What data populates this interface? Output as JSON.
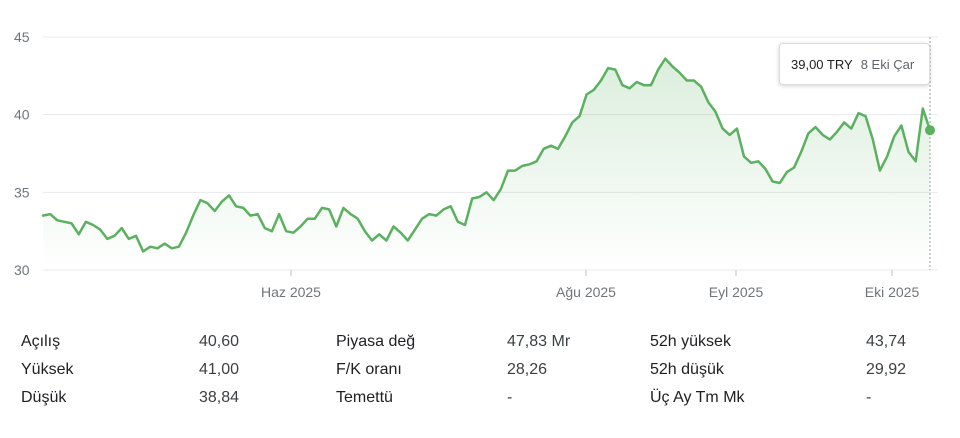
{
  "chart_data": {
    "type": "area",
    "title": "",
    "xlabel": "",
    "ylabel": "",
    "ylim": [
      30,
      45
    ],
    "yticks": [
      30,
      35,
      40,
      45
    ],
    "x_tick_labels": [
      "Haz 2025",
      "Ağu 2025",
      "Eyl 2025",
      "Eki 2025"
    ],
    "series": [
      {
        "values": [
          33.5,
          33.6,
          33.2,
          33.1,
          33.0,
          32.3,
          33.1,
          32.9,
          32.6,
          32.0,
          32.2,
          32.7,
          32.0,
          32.2,
          31.2,
          31.5,
          31.4,
          31.7,
          31.4,
          31.5,
          32.4,
          33.5,
          34.5,
          34.3,
          33.8,
          34.4,
          34.8,
          34.1,
          34.0,
          33.5,
          33.6,
          32.7,
          32.5,
          33.6,
          32.5,
          32.4,
          32.8,
          33.3,
          33.3,
          34.0,
          33.9,
          32.8,
          34.0,
          33.6,
          33.3,
          32.5,
          31.9,
          32.3,
          31.9,
          32.8,
          32.4,
          31.9,
          32.6,
          33.3,
          33.6,
          33.5,
          33.9,
          34.1,
          33.1,
          32.9,
          34.6,
          34.7,
          35.0,
          34.5,
          35.2,
          36.4,
          36.4,
          36.7,
          36.8,
          37.0,
          37.8,
          38.0,
          37.8,
          38.6,
          39.5,
          39.9,
          41.3,
          41.6,
          42.2,
          43.0,
          42.9,
          41.9,
          41.7,
          42.1,
          41.9,
          41.9,
          42.9,
          43.6,
          43.1,
          42.7,
          42.2,
          42.2,
          41.8,
          40.8,
          40.2,
          39.1,
          38.7,
          39.1,
          37.3,
          36.9,
          37.0,
          36.5,
          35.7,
          35.6,
          36.3,
          36.6,
          37.6,
          38.8,
          39.2,
          38.7,
          38.4,
          38.9,
          39.5,
          39.1,
          40.1,
          39.9,
          38.4,
          36.4,
          37.3,
          38.6,
          39.3,
          37.6,
          37.0,
          40.4,
          39.0
        ]
      }
    ],
    "last_point": {
      "price": "39,00 TRY",
      "date": "8 Eki Çar"
    },
    "colors": {
      "line": "#5bb160",
      "fill": "#5bb160",
      "grid": "#e8eaed",
      "tick": "#70757a"
    }
  },
  "tooltip": {
    "price": "39,00 TRY",
    "date": "8 Eki Çar"
  },
  "stats": {
    "col1": [
      {
        "label": "Açılış",
        "value": "40,60"
      },
      {
        "label": "Yüksek",
        "value": "41,00"
      },
      {
        "label": "Düşük",
        "value": "38,84"
      }
    ],
    "col2": [
      {
        "label": "Piyasa değ",
        "value": "47,83 Mr"
      },
      {
        "label": "F/K oranı",
        "value": "28,26"
      },
      {
        "label": "Temettü",
        "value": "-"
      }
    ],
    "col3": [
      {
        "label": "52h yüksek",
        "value": "43,74"
      },
      {
        "label": "52h düşük",
        "value": "29,92"
      },
      {
        "label": "Üç Ay Tm Mk",
        "value": "-"
      }
    ]
  }
}
